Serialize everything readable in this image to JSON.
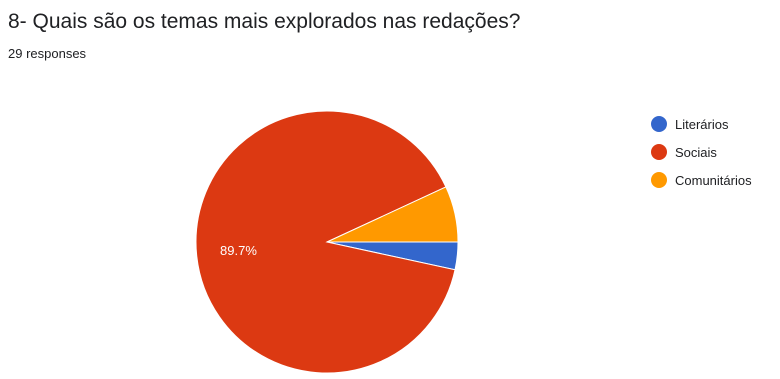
{
  "question": {
    "title": "8- Quais são os temas mais explorados nas redações?",
    "responses": "29 responses"
  },
  "chart_data": {
    "type": "pie",
    "title": "8- Quais são os temas mais explorados nas redações?",
    "categories": [
      "Literários",
      "Sociais",
      "Comunitários"
    ],
    "values": [
      3.4,
      89.7,
      6.9
    ],
    "unit": "%",
    "colors": [
      "#3366cc",
      "#dc3912",
      "#ff9900"
    ],
    "data_labels": [
      "",
      "89.7%",
      ""
    ],
    "legend": "right"
  }
}
